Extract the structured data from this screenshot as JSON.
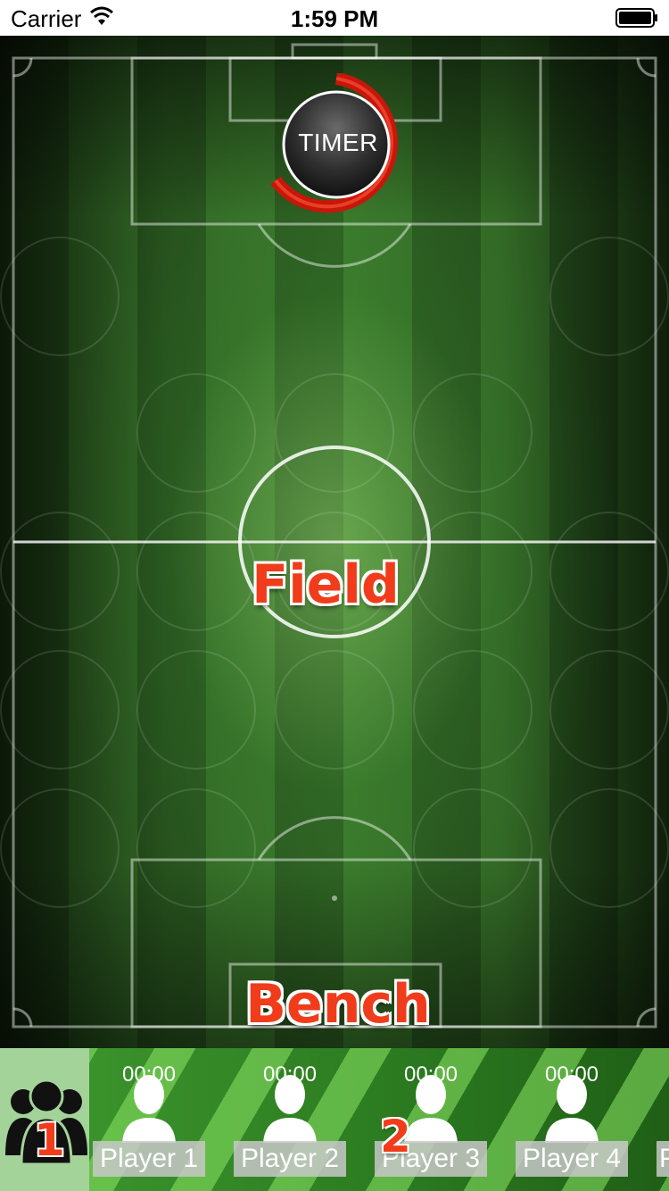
{
  "status_bar": {
    "carrier": "Carrier",
    "time": "1:59 PM"
  },
  "field": {
    "label": "Field",
    "timer_label": "TIMER"
  },
  "bench": {
    "label": "Bench",
    "markers": [
      "1",
      "2"
    ],
    "players": [
      {
        "time": "00:00",
        "name": "Player 1"
      },
      {
        "time": "00:00",
        "name": "Player 2"
      },
      {
        "time": "00:00",
        "name": "Player 3"
      },
      {
        "time": "00:00",
        "name": "Player 4"
      }
    ],
    "partial_player_initial": "P"
  },
  "colors": {
    "accent_red": "#f03c1a",
    "timer_ring": "#d81e0a",
    "team_button_bg": "#a4d39a"
  }
}
